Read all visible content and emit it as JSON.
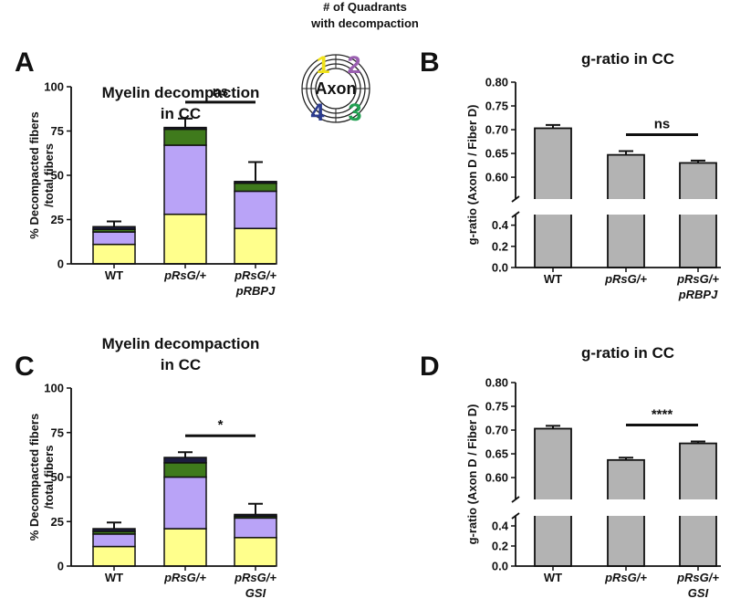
{
  "quadrant_key": {
    "title": "# of Quadrants\nwith decompaction",
    "center": "Axon",
    "labels": [
      "1",
      "2",
      "3",
      "4"
    ],
    "colors": [
      "#f0e21a",
      "#9a5fb0",
      "#22a052",
      "#2b3b8f"
    ]
  },
  "chart_data": [
    {
      "type": "stacked_bar",
      "panel": "A",
      "title": "Myelin decompaction\nin CC",
      "y_label": "% Decompacted fibers\n/total fibers",
      "categories": [
        "WT",
        "pRsG/+",
        "pRsG/+\npRBPJ"
      ],
      "series": [
        {
          "color": "#ffff8c",
          "values": [
            11,
            28,
            20
          ]
        },
        {
          "color": "#b9a3f7",
          "values": [
            7,
            39,
            21
          ]
        },
        {
          "color": "#3f7a1c",
          "values": [
            1.5,
            9,
            4.5
          ]
        },
        {
          "color": "#1c1c40",
          "values": [
            1.5,
            1,
            1
          ]
        }
      ],
      "errors": [
        3,
        5,
        11
      ],
      "ylim": [
        0,
        100
      ],
      "yticks": [
        0,
        25,
        50,
        75,
        100
      ],
      "significance": "ns"
    },
    {
      "type": "broken_bar",
      "panel": "B",
      "title": "g-ratio in CC",
      "y_label": "g-ratio (Axon D / Fiber D)",
      "categories": [
        "WT",
        "pRsG/+",
        "pRsG/+\npRBPJ"
      ],
      "values": [
        0.703,
        0.647,
        0.63
      ],
      "errors": [
        0.007,
        0.008,
        0.005
      ],
      "color": "#b3b3b3",
      "ylim": [
        0,
        0.8
      ],
      "break": [
        0.5,
        0.554
      ],
      "yticks": [
        {
          "value": 0,
          "label": "0.0"
        },
        0.2,
        0.4,
        {
          "value": 0.6,
          "label": "0.60"
        },
        0.65,
        {
          "value": 0.7,
          "label": "0.70"
        },
        0.75,
        {
          "value": 0.8,
          "label": "0.80"
        }
      ],
      "significance": "ns"
    },
    {
      "type": "stacked_bar",
      "panel": "C",
      "title": "Myelin decompaction\nin CC",
      "y_label": "% Decompacted fibers\n/total fibers",
      "categories": [
        "WT",
        "pRsG/+",
        "pRsG/+\nGSI"
      ],
      "series": [
        {
          "color": "#ffff8c",
          "values": [
            11,
            21,
            16
          ]
        },
        {
          "color": "#b9a3f7",
          "values": [
            7,
            29,
            11
          ]
        },
        {
          "color": "#3f7a1c",
          "values": [
            1.5,
            8,
            1
          ]
        },
        {
          "color": "#1c1c40",
          "values": [
            1.5,
            3,
            1
          ]
        }
      ],
      "errors": [
        3.5,
        3,
        6
      ],
      "ylim": [
        0,
        100
      ],
      "yticks": [
        0,
        25,
        50,
        75,
        100
      ],
      "significance": "*"
    },
    {
      "type": "broken_bar",
      "panel": "D",
      "title": "g-ratio in CC",
      "y_label": "g-ratio (Axon D / Fiber D)",
      "categories": [
        "WT",
        "pRsG/+",
        "pRsG/+\nGSI"
      ],
      "values": [
        0.703,
        0.637,
        0.672
      ],
      "errors": [
        0.006,
        0.005,
        0.004
      ],
      "color": "#b3b3b3",
      "ylim": [
        0,
        0.8
      ],
      "break": [
        0.5,
        0.554
      ],
      "yticks": [
        {
          "value": 0,
          "label": "0.0"
        },
        0.2,
        0.4,
        {
          "value": 0.6,
          "label": "0.60"
        },
        0.65,
        {
          "value": 0.7,
          "label": "0.70"
        },
        0.75,
        {
          "value": 0.8,
          "label": "0.80"
        }
      ],
      "significance": "****"
    }
  ]
}
